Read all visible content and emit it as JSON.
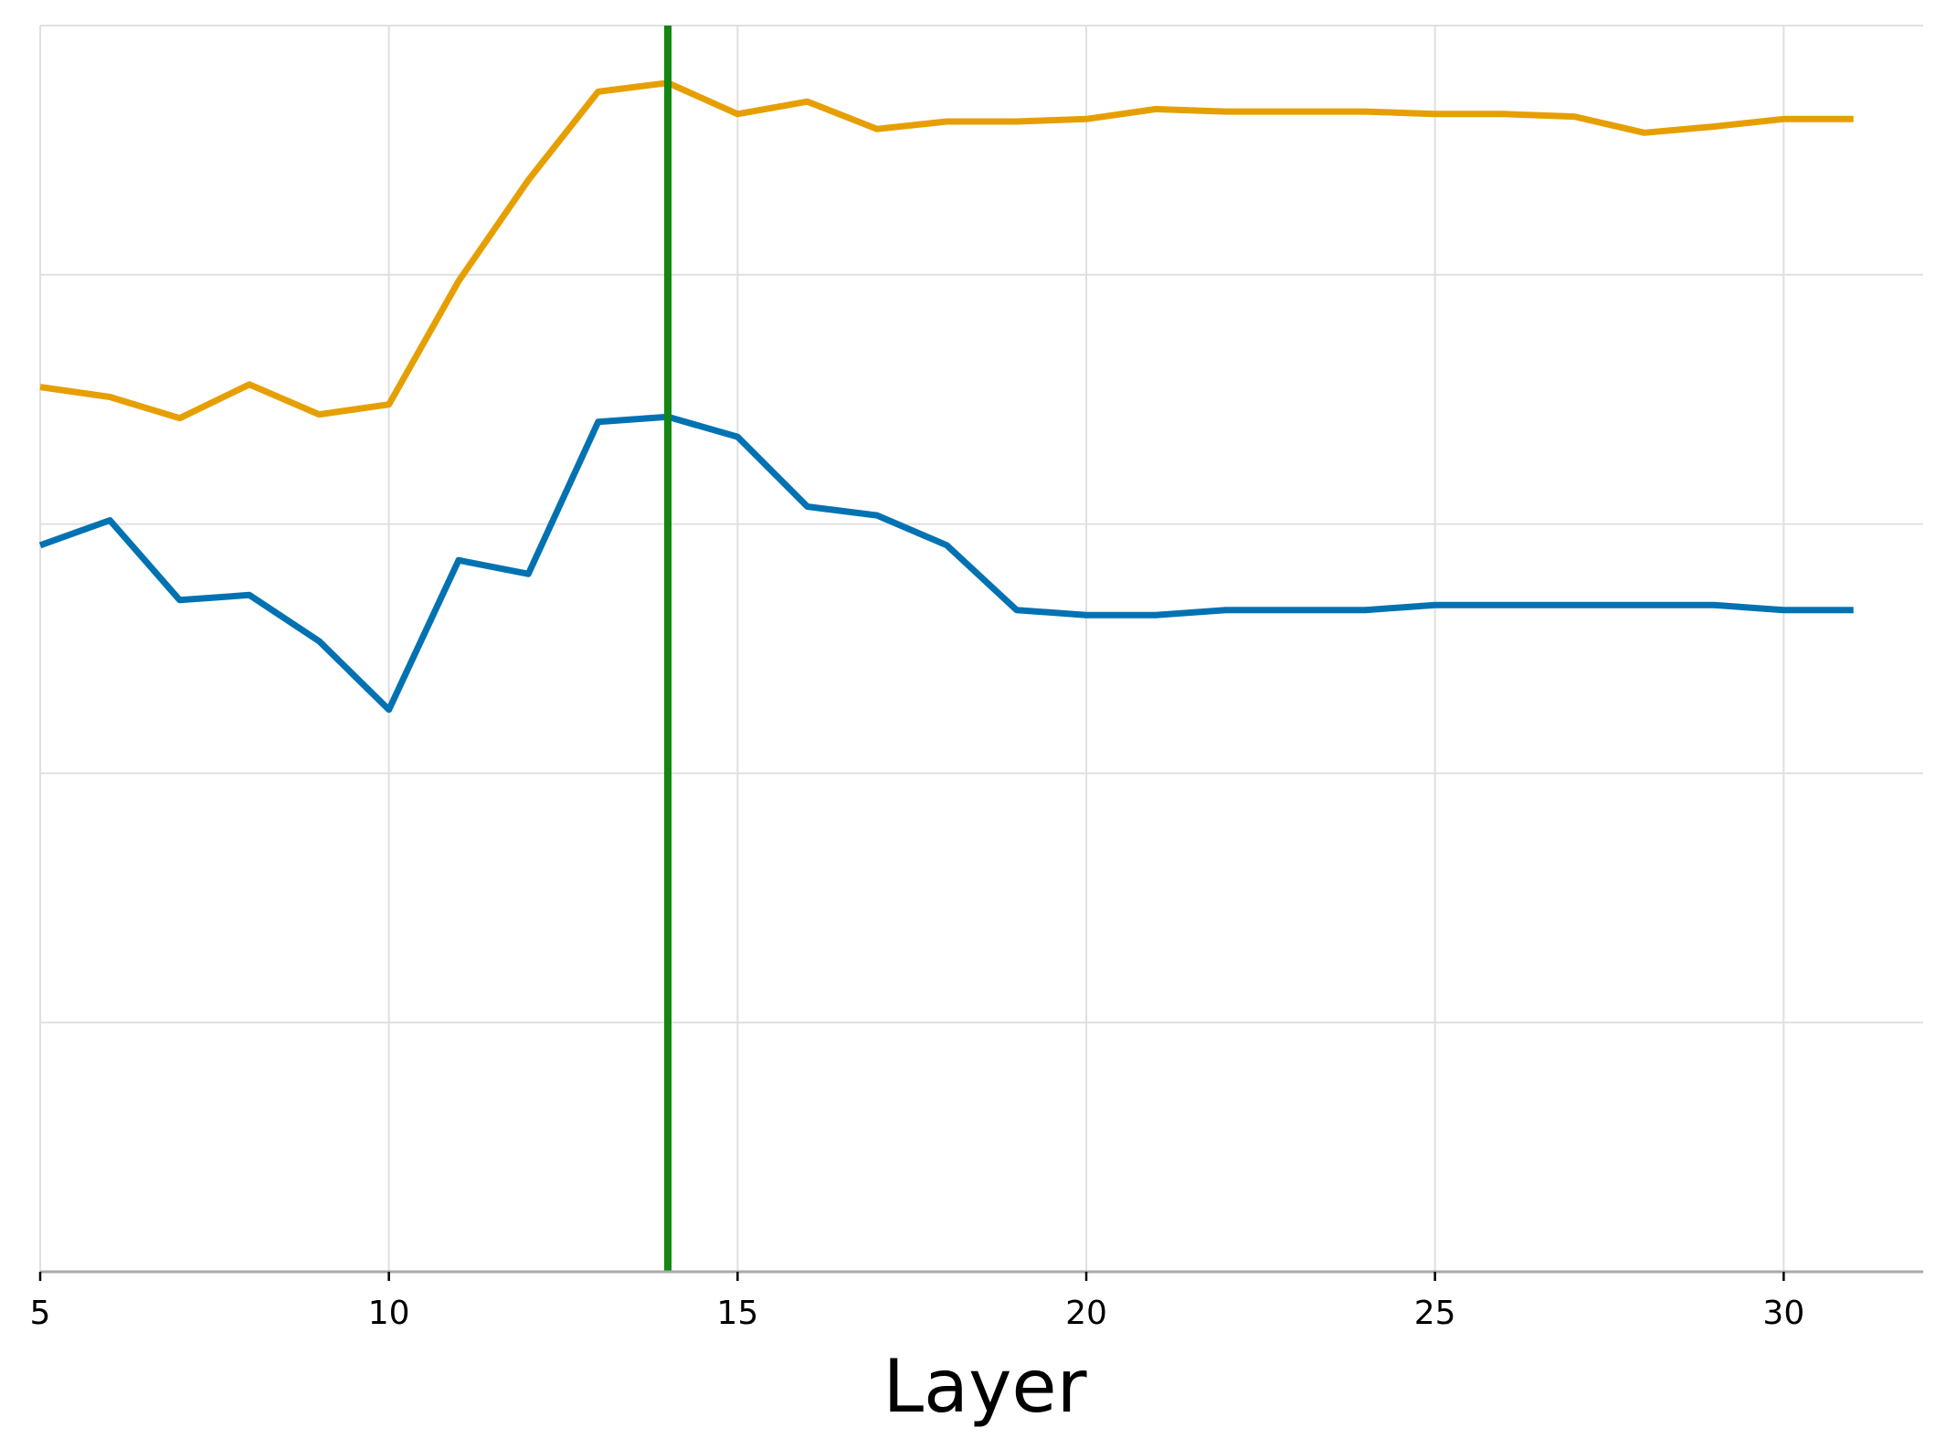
{
  "chart_data": {
    "type": "line",
    "title": "",
    "xlabel": "Layer",
    "ylabel": "",
    "xlim": [
      5,
      32
    ],
    "ylim": [
      0,
      1
    ],
    "xticks": [
      5,
      10,
      15,
      20,
      25,
      30
    ],
    "xtick_labels": [
      "5",
      "10",
      "15",
      "20",
      "25",
      "30"
    ],
    "yticks": [
      0,
      0.2,
      0.4,
      0.6,
      0.8,
      1.0
    ],
    "grid": true,
    "legend": "none",
    "x": [
      5,
      6,
      7,
      8,
      9,
      10,
      11,
      12,
      13,
      14,
      15,
      16,
      17,
      18,
      19,
      20,
      21,
      22,
      23,
      24,
      25,
      26,
      27,
      28,
      29,
      30,
      31
    ],
    "series": [
      {
        "color": "#E69F00",
        "values": [
          0.71,
          0.702,
          0.685,
          0.712,
          0.688,
          0.696,
          0.795,
          0.876,
          0.947,
          0.954,
          0.929,
          0.939,
          0.917,
          0.923,
          0.923,
          0.925,
          0.933,
          0.931,
          0.931,
          0.931,
          0.929,
          0.929,
          0.927,
          0.914,
          0.919,
          0.925,
          0.925
        ]
      },
      {
        "color": "#0072B2",
        "values": [
          0.583,
          0.603,
          0.539,
          0.543,
          0.506,
          0.451,
          0.571,
          0.56,
          0.682,
          0.686,
          0.67,
          0.614,
          0.607,
          0.583,
          0.531,
          0.527,
          0.527,
          0.531,
          0.531,
          0.531,
          0.535,
          0.535,
          0.535,
          0.535,
          0.535,
          0.531,
          0.531
        ]
      }
    ],
    "vline": {
      "x": 14,
      "color": "#138613"
    }
  }
}
